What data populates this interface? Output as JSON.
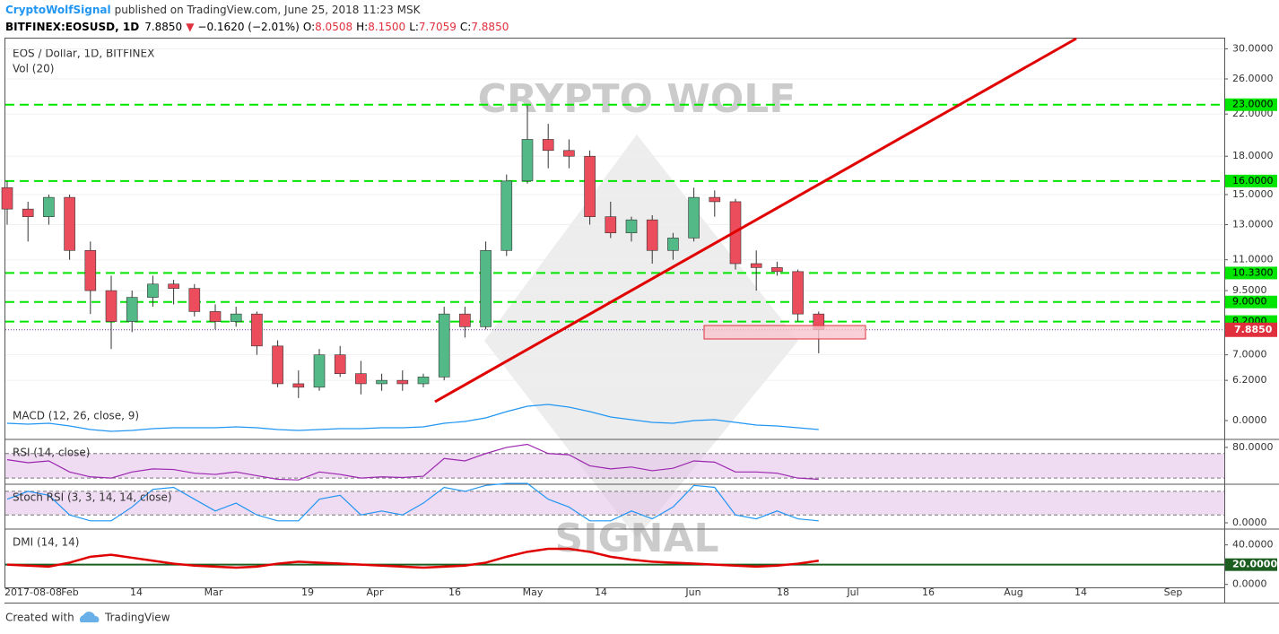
{
  "header": {
    "author": "CryptoWolfSignal",
    "published": "published on TradingView.com, June 25, 2018 11:23 MSK",
    "symbol": "BITFINEX:EOSUSD, 1D",
    "price": "7.8850",
    "change": "−0.1620 (−2.01%)",
    "ohlc": [
      {
        "key": "O:",
        "value": "8.0508"
      },
      {
        "key": "H:",
        "value": "8.1500"
      },
      {
        "key": "L:",
        "value": "7.7059"
      },
      {
        "key": "C:",
        "value": "7.8850"
      }
    ]
  },
  "chart_data": {
    "type": "candlestick",
    "title": "EOS / Dollar, 1D, BITFINEX",
    "subtitle": "Vol (20)",
    "watermark": [
      "CRYPTO WOLF",
      "SIGNAL"
    ],
    "log_scale": true,
    "ylim": [
      5.6,
      31.5
    ],
    "yticks": [
      {
        "value": 30,
        "label": "30.0000"
      },
      {
        "value": 26,
        "label": "26.0000"
      },
      {
        "value": 22,
        "label": "22.0000"
      },
      {
        "value": 18,
        "label": "18.0000"
      },
      {
        "value": 15,
        "label": "15.0000"
      },
      {
        "value": 13,
        "label": "13.0000"
      },
      {
        "value": 11,
        "label": "11.0000"
      },
      {
        "value": 9.5,
        "label": "9.5000"
      },
      {
        "value": 7,
        "label": "7.0000"
      },
      {
        "value": 6.2,
        "label": "6.2000"
      }
    ],
    "levels": [
      {
        "value": 23,
        "label": "23.0000"
      },
      {
        "value": 16,
        "label": "16.0000"
      },
      {
        "value": 10.33,
        "label": "10.3300"
      },
      {
        "value": 9,
        "label": "9.0000"
      },
      {
        "value": 8.2,
        "label": "8.2000"
      }
    ],
    "level_color": "#00e600",
    "last_price": {
      "value": 7.885,
      "label": "7.8850"
    },
    "up_color": "#53b987",
    "down_color": "#eb4d5c",
    "x_labels": [
      "2017-08-08",
      "Feb",
      "14",
      "Mar",
      "19",
      "Apr",
      "16",
      "May",
      "14",
      "Jun",
      "18",
      "Jul",
      "16",
      "Aug",
      "14",
      "Sep"
    ],
    "open": [
      15.5,
      14,
      13.5,
      14.8,
      11.5,
      9.5,
      8.2,
      9.2,
      9.8,
      9.6,
      8.6,
      8.2,
      8.5,
      7.3,
      6.1,
      6.0,
      7.0,
      6.4,
      6.1,
      6.2,
      6.1,
      6.3,
      8.5,
      8.0,
      11.5,
      16,
      19.5,
      18.5,
      18,
      13.5,
      12.5,
      13.3,
      11.5,
      12.2,
      14.8,
      14.5,
      10.8,
      10.6,
      10.4,
      8.5
    ],
    "high": [
      16,
      14.5,
      15,
      15,
      12,
      10.2,
      9.5,
      10.2,
      10.0,
      9.8,
      8.9,
      8.8,
      8.6,
      7.5,
      6.5,
      7.2,
      7.3,
      6.8,
      6.4,
      6.5,
      6.4,
      8.8,
      8.8,
      12.0,
      16.5,
      22.9,
      21,
      19.5,
      18.5,
      14.5,
      13.5,
      13.6,
      12.5,
      15.5,
      15.3,
      14.7,
      11.5,
      10.9,
      10.5,
      8.6
    ],
    "low": [
      13,
      12,
      13,
      11,
      8.5,
      7.2,
      7.8,
      8.8,
      8.9,
      8.4,
      7.9,
      8.0,
      7.0,
      6.0,
      5.7,
      5.9,
      6.3,
      5.8,
      5.9,
      5.9,
      6.0,
      6.2,
      7.6,
      7.9,
      11.2,
      15.8,
      17,
      17,
      13,
      12.2,
      12,
      10.8,
      11,
      12,
      13.5,
      10.5,
      9.5,
      10.2,
      8.2,
      7.05
    ],
    "close": [
      14,
      13.5,
      14.8,
      11.5,
      9.5,
      8.2,
      9.2,
      9.8,
      9.6,
      8.6,
      8.2,
      8.5,
      7.3,
      6.1,
      6.0,
      7.0,
      6.4,
      6.1,
      6.2,
      6.1,
      6.3,
      8.5,
      8.0,
      11.5,
      16,
      19.5,
      18.5,
      18,
      13.5,
      12.5,
      13.3,
      11.5,
      12.2,
      14.8,
      14.5,
      10.8,
      10.6,
      10.4,
      8.5,
      7.885
    ],
    "indicators": [
      {
        "title": "MACD (12, 26, close, 9)",
        "ylim": [
          -2,
          2
        ],
        "yticks": [
          {
            "value": 0,
            "label": "0.0000"
          }
        ],
        "color": "#2196f3",
        "values": [
          -0.3,
          -0.4,
          -0.3,
          -0.6,
          -1.0,
          -1.2,
          -1.1,
          -0.9,
          -0.8,
          -0.8,
          -0.8,
          -0.7,
          -0.8,
          -1.0,
          -1.1,
          -1.0,
          -0.9,
          -0.9,
          -0.8,
          -0.8,
          -0.7,
          -0.3,
          -0.1,
          0.3,
          1.0,
          1.6,
          1.8,
          1.5,
          1.0,
          0.4,
          0.1,
          -0.2,
          -0.3,
          0.0,
          0.1,
          -0.2,
          -0.5,
          -0.6,
          -0.8,
          -1.0
        ]
      },
      {
        "title": "RSI (14, close)",
        "ylim": [
          20,
          93
        ],
        "yticks": [
          {
            "value": 80,
            "label": "80.0000"
          }
        ],
        "band": [
          30,
          70
        ],
        "color": "#9c27b0",
        "values": [
          60,
          55,
          58,
          40,
          32,
          30,
          40,
          45,
          44,
          38,
          36,
          40,
          34,
          28,
          27,
          40,
          36,
          30,
          32,
          31,
          33,
          62,
          58,
          70,
          80,
          85,
          70,
          68,
          50,
          45,
          48,
          42,
          46,
          58,
          56,
          40,
          40,
          38,
          30,
          28
        ]
      },
      {
        "title": "Stoch RSI (3, 3, 14, 14, close)",
        "ylim": [
          -16,
          98
        ],
        "yticks": [
          {
            "value": 0,
            "label": "0.0000"
          }
        ],
        "band": [
          20,
          80
        ],
        "color": "#2196f3",
        "values": [
          60,
          80,
          70,
          20,
          5,
          5,
          40,
          85,
          90,
          60,
          30,
          50,
          20,
          5,
          5,
          60,
          70,
          20,
          30,
          20,
          50,
          90,
          80,
          95,
          100,
          100,
          60,
          40,
          5,
          5,
          30,
          10,
          40,
          95,
          90,
          20,
          10,
          30,
          10,
          5
        ]
      },
      {
        "title": "DMI (14, 14)",
        "ylim": [
          -3,
          56
        ],
        "yticks": [
          {
            "value": 40,
            "label": "40.0000"
          },
          {
            "value": 0,
            "label": "0.0000"
          }
        ],
        "reference": {
          "value": 20,
          "label": "20.0000"
        },
        "color": "#e00000",
        "values": [
          20,
          19,
          18,
          22,
          28,
          30,
          27,
          24,
          21,
          19,
          18,
          17,
          18,
          21,
          23,
          22,
          21,
          20,
          19,
          18,
          17,
          18,
          19,
          22,
          28,
          33,
          36,
          36,
          33,
          28,
          25,
          23,
          22,
          21,
          20,
          19,
          18,
          19,
          21,
          24
        ]
      }
    ]
  },
  "footer": {
    "created": "Created with",
    "brand": "TradingView"
  }
}
